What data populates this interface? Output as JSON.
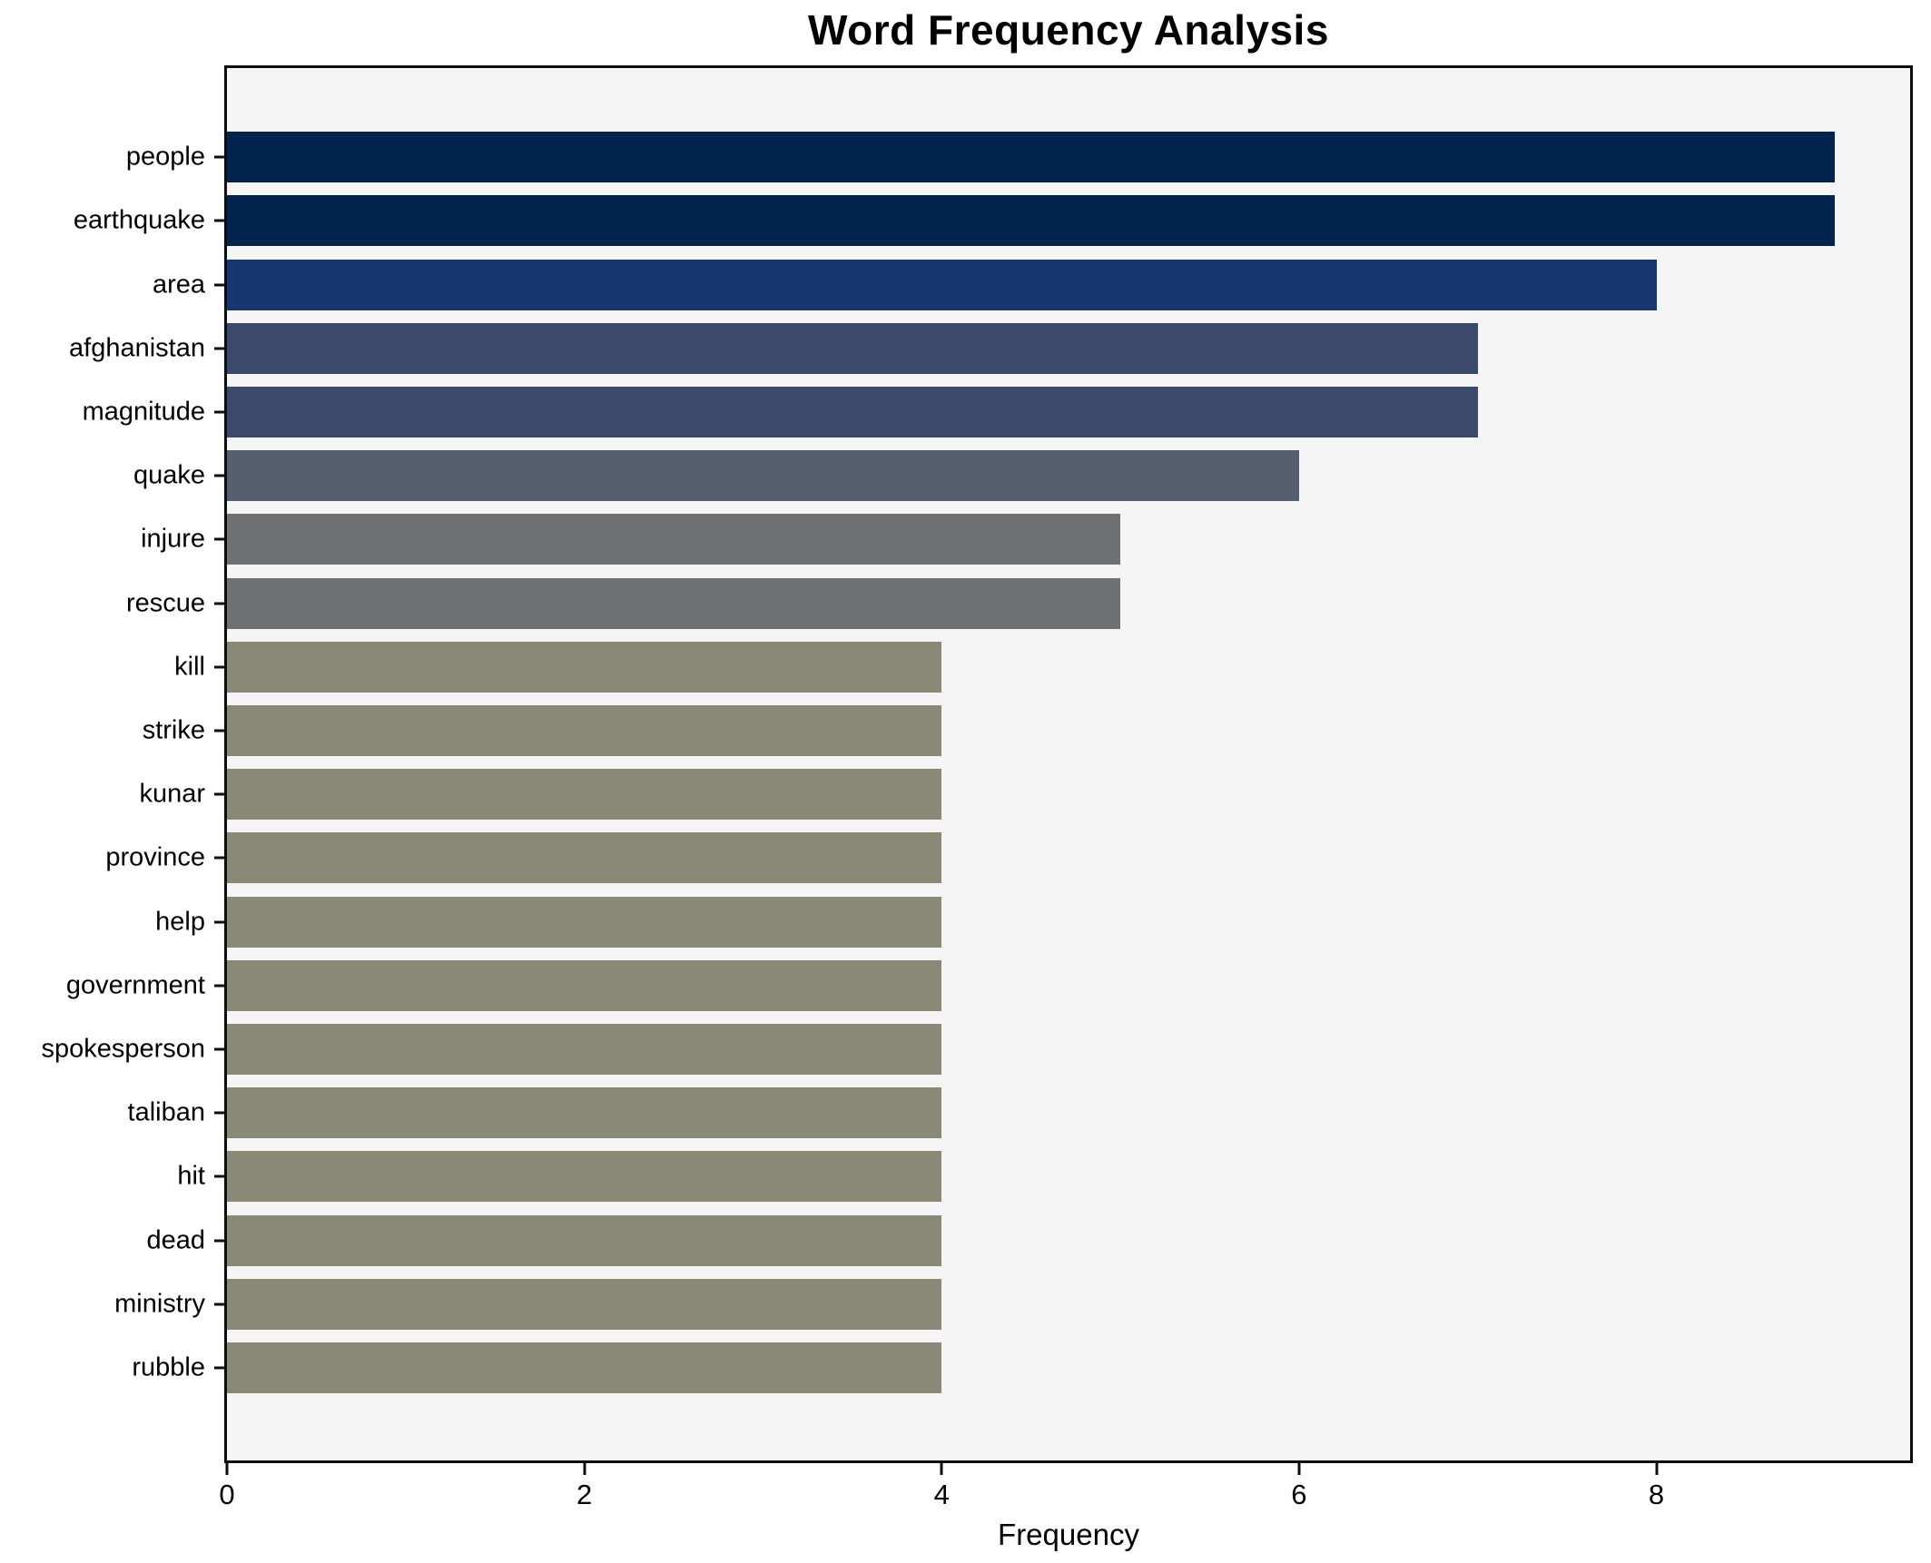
{
  "figure": {
    "background": "#ffffff",
    "plot_background": "#f5f5f6",
    "spine_color": "#0d0d0d"
  },
  "chart_data": {
    "type": "bar",
    "orientation": "horizontal",
    "title": "Word Frequency Analysis",
    "xlabel": "Frequency",
    "ylabel": "",
    "categories": [
      "people",
      "earthquake",
      "area",
      "afghanistan",
      "magnitude",
      "quake",
      "injure",
      "rescue",
      "kill",
      "strike",
      "kunar",
      "province",
      "help",
      "government",
      "spokesperson",
      "taliban",
      "hit",
      "dead",
      "ministry",
      "rubble"
    ],
    "values": [
      9,
      9,
      8,
      7,
      7,
      6,
      5,
      5,
      4,
      4,
      4,
      4,
      4,
      4,
      4,
      4,
      4,
      4,
      4,
      4
    ],
    "bar_colors": [
      "#01234e",
      "#01234e",
      "#16376e",
      "#3b4a6b",
      "#3b4a6b",
      "#565d6e",
      "#6f7072",
      "#6f7072",
      "#8a8877",
      "#8a8877",
      "#8a8877",
      "#8a8877",
      "#8a8877",
      "#8a8877",
      "#8a8877",
      "#8a8877",
      "#8a8877",
      "#8a8877",
      "#8a8877",
      "#8a8877"
    ],
    "xlim": [
      0,
      9.42
    ],
    "xticks": [
      0,
      2,
      4,
      6,
      8
    ],
    "grid": false,
    "legend": null
  }
}
